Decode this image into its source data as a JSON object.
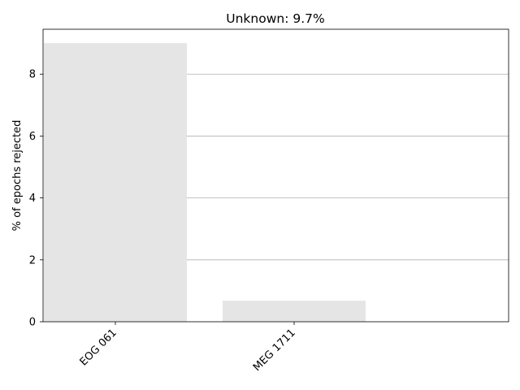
{
  "chart_data": {
    "type": "bar",
    "title": "Unknown: 9.7%",
    "xlabel": "",
    "ylabel": "% of epochs rejected",
    "categories": [
      "EOG 061",
      "MEG 1711"
    ],
    "values": [
      9.0,
      0.68
    ],
    "ylim": [
      0,
      9.45
    ],
    "yticks": [
      "0",
      "2",
      "4",
      "6",
      "8"
    ],
    "grid": "horizontal",
    "bar_color": "#e5e5e5",
    "grid_color": "#b0b0b0",
    "axis_color": "#000000"
  }
}
